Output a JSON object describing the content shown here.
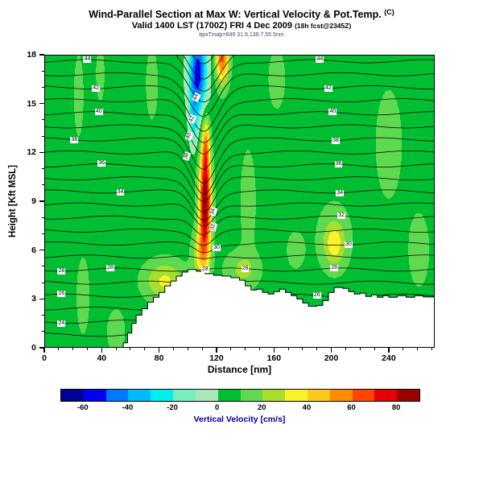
{
  "header": {
    "title_main": "Wind-Parallel Section at Max W: Vertical Velocity & Pot.Temp.",
    "title_unit": "(C)",
    "subtitle_main": "Valid 1400 LST (1700Z) FRI 4 Dec 2009",
    "subtitle_note": "(18h fcst@2345Z)",
    "fineprint": "bpxTmap=649  31.9,139.7,55.5nm"
  },
  "chart_data": {
    "type": "heatmap",
    "title": "Wind-Parallel Section at Max W: Vertical Velocity & Pot.Temp. (C)",
    "xlabel": "Distance [nm]",
    "ylabel": "Height [Kft MSL]",
    "x_range": [
      0,
      272
    ],
    "y_range": [
      0,
      18
    ],
    "x_ticks": [
      0,
      40,
      80,
      120,
      160,
      200,
      240
    ],
    "y_ticks": [
      0,
      3,
      6,
      9,
      12,
      15,
      18
    ],
    "x_minor_step": 10,
    "y_minor_step": 1,
    "fill_field": {
      "name": "vertical-velocity",
      "units": "cm/s",
      "background": 6,
      "gaussians": [
        {
          "x": 112,
          "z": 8.8,
          "sx": 4.2,
          "sz": 3.1,
          "a": 82
        },
        {
          "x": 112.5,
          "z": 12.4,
          "sx": 2.7,
          "sz": 1.9,
          "a": 38
        },
        {
          "x": 109,
          "z": 5.8,
          "sx": 5.5,
          "sz": 1.4,
          "a": 28
        },
        {
          "x": 84,
          "z": 4.1,
          "sx": 14,
          "sz": 1.2,
          "a": 26
        },
        {
          "x": 138,
          "z": 4.8,
          "sx": 12,
          "sz": 1.1,
          "a": 16
        },
        {
          "x": 107,
          "z": 16.9,
          "sx": 6.5,
          "sz": 2.6,
          "a": -62
        },
        {
          "x": 104,
          "z": 13.9,
          "sx": 3,
          "sz": 1.7,
          "a": -24
        },
        {
          "x": 124,
          "z": 17.9,
          "sx": 4.5,
          "sz": 1.6,
          "a": 58
        },
        {
          "x": 202,
          "z": 6.4,
          "sx": 7,
          "sz": 1.2,
          "a": 24
        },
        {
          "x": 202,
          "z": 6.8,
          "sx": 13,
          "sz": 2.4,
          "a": 9
        },
        {
          "x": 27,
          "z": 3.2,
          "sx": 5,
          "sz": 2.6,
          "a": 9
        },
        {
          "x": 50,
          "z": 1.0,
          "sx": 6,
          "sz": 1.3,
          "a": 12
        },
        {
          "x": 24,
          "z": 15.5,
          "sx": 4,
          "sz": 3,
          "a": 8
        },
        {
          "x": 39,
          "z": 16.8,
          "sx": 3.5,
          "sz": 2,
          "a": 8
        },
        {
          "x": 75,
          "z": 16.2,
          "sx": 5,
          "sz": 2.6,
          "a": 8
        },
        {
          "x": 142,
          "z": 9,
          "sx": 6,
          "sz": 3.5,
          "a": 9
        },
        {
          "x": 162,
          "z": 16.5,
          "sx": 7,
          "sz": 2.2,
          "a": 8
        },
        {
          "x": 240,
          "z": 12.5,
          "sx": 11,
          "sz": 4,
          "a": 8
        },
        {
          "x": 261,
          "z": 6,
          "sx": 8,
          "sz": 2.5,
          "a": 9
        },
        {
          "x": 175,
          "z": 6,
          "sx": 8,
          "sz": 1.5,
          "a": 7
        }
      ]
    },
    "fill_bins": {
      "min": -70,
      "step": 10,
      "colors": [
        "#000099",
        "#0000EE",
        "#0077FF",
        "#00BBFF",
        "#00EEEE",
        "#77EEBB",
        "#A8E8B8",
        "#00BE32",
        "#5FD94F",
        "#A8DF2F",
        "#F8F32B",
        "#FFC81E",
        "#FF8C00",
        "#FF4500",
        "#E80000",
        "#9B0000"
      ]
    },
    "contour_field": {
      "name": "potential-temperature",
      "units": "C",
      "base": 22,
      "lapse": 1.25,
      "level_min": 23,
      "level_max": 49,
      "level_step": 1,
      "wave": {
        "x_center": 111,
        "width_base": 9,
        "width_growth": 0.5,
        "amp": -2.6,
        "ramp_start": 5,
        "ramp_span": 7
      }
    },
    "contour_labels": [
      {
        "v": 24,
        "x": 12
      },
      {
        "v": 26,
        "x": 12
      },
      {
        "v": 28,
        "x": 12
      },
      {
        "v": 28,
        "x": 46
      },
      {
        "v": 34,
        "x": 53
      },
      {
        "v": 36,
        "x": 40
      },
      {
        "v": 38,
        "x": 21
      },
      {
        "v": 40,
        "x": 38
      },
      {
        "v": 42,
        "x": 36
      },
      {
        "v": 44,
        "x": 30
      },
      {
        "v": 28,
        "x": 112
      },
      {
        "v": 30,
        "x": 120
      },
      {
        "v": 32,
        "x": 118,
        "rot": -75
      },
      {
        "v": 34,
        "x": 118,
        "rot": -75
      },
      {
        "v": 28,
        "x": 140
      },
      {
        "v": 38,
        "x": 99,
        "rot": -70
      },
      {
        "v": 40,
        "x": 101,
        "rot": -70
      },
      {
        "v": 42,
        "x": 103,
        "rot": -70
      },
      {
        "v": 44,
        "x": 106,
        "rot": -65
      },
      {
        "v": 26,
        "x": 190
      },
      {
        "v": 28,
        "x": 202
      },
      {
        "v": 30,
        "x": 212
      },
      {
        "v": 32,
        "x": 207
      },
      {
        "v": 34,
        "x": 206
      },
      {
        "v": 36,
        "x": 205
      },
      {
        "v": 38,
        "x": 203
      },
      {
        "v": 40,
        "x": 201
      },
      {
        "v": 42,
        "x": 198
      },
      {
        "v": 44,
        "x": 192
      }
    ],
    "terrain": {
      "x": [
        0,
        55,
        58,
        61,
        64,
        68,
        72,
        76,
        80,
        84,
        88,
        92,
        96,
        100,
        106,
        112,
        118,
        124,
        130,
        136,
        140,
        144,
        148,
        152,
        156,
        160,
        164,
        168,
        172,
        176,
        180,
        184,
        190,
        194,
        198,
        202,
        208,
        212,
        216,
        220,
        224,
        228,
        232,
        236,
        240,
        246,
        252,
        258,
        264,
        272
      ],
      "elev": [
        0,
        0.3,
        0.9,
        1.5,
        2.0,
        2.4,
        2.8,
        3.1,
        3.4,
        3.8,
        4.1,
        4.4,
        4.65,
        4.8,
        4.7,
        4.55,
        4.45,
        4.4,
        4.3,
        4.15,
        3.8,
        3.55,
        3.6,
        3.4,
        3.3,
        3.45,
        3.6,
        3.4,
        3.2,
        3.0,
        2.75,
        2.55,
        2.6,
        2.9,
        3.4,
        3.7,
        3.65,
        3.45,
        3.3,
        3.35,
        3.15,
        3.25,
        3.1,
        3.2,
        3.1,
        3.2,
        3.1,
        3.2,
        3.12,
        3.2
      ]
    },
    "colorbar": {
      "ticks": [
        -60,
        -40,
        -20,
        0,
        20,
        40,
        60,
        80
      ],
      "label": "Vertical Velocity [cm/s]"
    }
  }
}
